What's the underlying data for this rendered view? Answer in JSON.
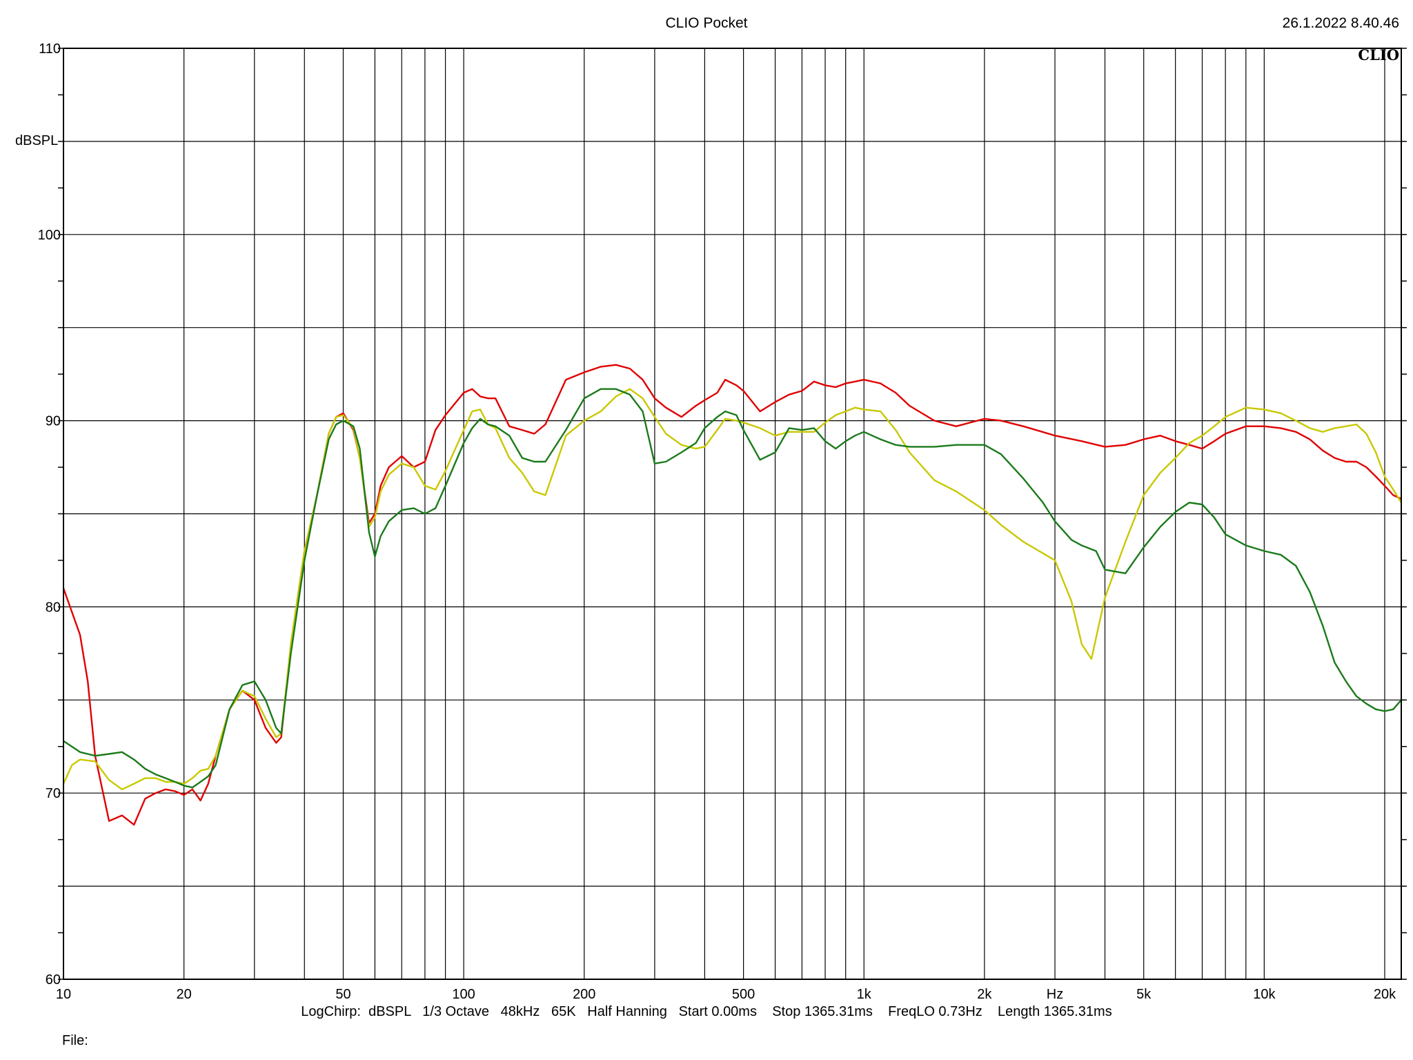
{
  "header": {
    "title": "CLIO Pocket",
    "timestamp": "26.1.2022 8.40.46",
    "logo": "CLIO"
  },
  "footer": {
    "settings": "LogChirp:  dBSPL   1/3 Octave   48kHz   65K   Half Hanning   Start 0.00ms    Stop 1365.31ms    FreqLO 0.73Hz    Length 1365.31ms",
    "file_label": "File:"
  },
  "chart_data": {
    "type": "line",
    "title": "CLIO Pocket",
    "xlabel": "Hz",
    "ylabel": "dBSPL",
    "xscale": "log",
    "xlim": [
      10,
      22000
    ],
    "ylim": [
      60,
      110
    ],
    "grid": true,
    "x_tick_labels": [
      {
        "value": 10,
        "label": "10"
      },
      {
        "value": 20,
        "label": "20"
      },
      {
        "value": 50,
        "label": "50"
      },
      {
        "value": 100,
        "label": "100"
      },
      {
        "value": 200,
        "label": "200"
      },
      {
        "value": 500,
        "label": "500"
      },
      {
        "value": 1000,
        "label": "1k"
      },
      {
        "value": 2000,
        "label": "2k"
      },
      {
        "value": 3000,
        "label": "Hz"
      },
      {
        "value": 5000,
        "label": "5k"
      },
      {
        "value": 10000,
        "label": "10k"
      },
      {
        "value": 20000,
        "label": "20k"
      }
    ],
    "y_tick_labels": [
      {
        "value": 110,
        "label": "110"
      },
      {
        "value": 100,
        "label": "100"
      },
      {
        "value": 90,
        "label": "90"
      },
      {
        "value": 80,
        "label": "80"
      },
      {
        "value": 70,
        "label": "70"
      },
      {
        "value": 60,
        "label": "60"
      }
    ],
    "series": [
      {
        "color": "#e00000",
        "x": [
          10,
          11,
          11.5,
          12,
          13,
          14,
          15,
          16,
          17,
          18,
          19,
          20,
          21,
          22,
          23,
          24,
          26,
          28,
          30,
          32,
          34,
          35,
          37,
          40,
          43,
          46,
          48,
          50,
          53,
          55,
          58,
          60,
          62,
          65,
          70,
          75,
          80,
          85,
          90,
          100,
          105,
          110,
          115,
          120,
          130,
          140,
          150,
          160,
          180,
          200,
          220,
          240,
          260,
          280,
          300,
          320,
          350,
          380,
          400,
          430,
          450,
          480,
          500,
          550,
          600,
          650,
          700,
          750,
          800,
          850,
          900,
          950,
          1000,
          1100,
          1200,
          1300,
          1500,
          1700,
          2000,
          2200,
          2500,
          3000,
          3500,
          4000,
          4500,
          5000,
          5500,
          6000,
          6500,
          7000,
          7500,
          8000,
          9000,
          10000,
          11000,
          12000,
          13000,
          14000,
          15000,
          16000,
          17000,
          18000,
          19000,
          20000,
          21000,
          22000
        ],
        "y": [
          81,
          78.5,
          76,
          72,
          68.5,
          68.8,
          68.3,
          69.7,
          70,
          70.2,
          70.1,
          69.9,
          70.2,
          69.6,
          70.5,
          72,
          74.5,
          75.5,
          75,
          73.5,
          72.7,
          73,
          78,
          83,
          86,
          89.3,
          90.2,
          90.4,
          89.5,
          88,
          84.5,
          85,
          86.5,
          87.5,
          88.1,
          87.5,
          87.8,
          89.5,
          90.3,
          91.5,
          91.7,
          91.3,
          91.2,
          91.2,
          89.7,
          89.5,
          89.3,
          89.8,
          92.2,
          92.6,
          92.9,
          93,
          92.8,
          92.2,
          91.2,
          90.7,
          90.2,
          90.8,
          91.1,
          91.5,
          92.2,
          91.9,
          91.6,
          90.5,
          91.0,
          91.4,
          91.6,
          92.1,
          91.9,
          91.8,
          92.0,
          92.1,
          92.2,
          92.0,
          91.5,
          90.8,
          90.0,
          89.7,
          90.1,
          90.0,
          89.7,
          89.2,
          88.9,
          88.6,
          88.7,
          89.0,
          89.2,
          88.9,
          88.7,
          88.5,
          88.9,
          89.3,
          89.7,
          89.7,
          89.6,
          89.4,
          89.0,
          88.4,
          88.0,
          87.8,
          87.8,
          87.5,
          87.0,
          86.5,
          86.0,
          85.8
        ]
      },
      {
        "color": "#c8c800",
        "x": [
          10,
          10.5,
          11,
          12,
          13,
          14,
          15,
          16,
          17,
          18,
          19,
          20,
          21,
          22,
          23,
          24,
          26,
          28,
          30,
          32,
          34,
          35,
          37,
          40,
          43,
          46,
          48,
          50,
          53,
          55,
          58,
          60,
          62,
          65,
          70,
          75,
          80,
          85,
          90,
          100,
          105,
          110,
          115,
          120,
          130,
          140,
          150,
          160,
          180,
          200,
          220,
          240,
          260,
          280,
          300,
          320,
          350,
          380,
          400,
          430,
          450,
          480,
          500,
          550,
          600,
          650,
          700,
          750,
          800,
          850,
          900,
          950,
          1000,
          1100,
          1200,
          1300,
          1500,
          1700,
          2000,
          2200,
          2500,
          3000,
          3300,
          3500,
          3700,
          4000,
          4500,
          5000,
          5500,
          6000,
          6500,
          7000,
          7500,
          8000,
          9000,
          10000,
          11000,
          12000,
          13000,
          14000,
          15000,
          16000,
          17000,
          18000,
          19000,
          20000,
          21000,
          22000
        ],
        "y": [
          70.5,
          71.5,
          71.8,
          71.7,
          70.7,
          70.2,
          70.5,
          70.8,
          70.8,
          70.6,
          70.6,
          70.5,
          70.8,
          71.2,
          71.3,
          72,
          74.5,
          75.5,
          75.2,
          74,
          73,
          73.2,
          78,
          83,
          86,
          89.3,
          90.2,
          90.3,
          89.6,
          88,
          84.3,
          84.8,
          86.2,
          87.1,
          87.7,
          87.5,
          86.5,
          86.3,
          87.3,
          89.5,
          90.5,
          90.6,
          89.8,
          89.6,
          88.0,
          87.2,
          86.2,
          86.0,
          89.2,
          90.0,
          90.5,
          91.3,
          91.7,
          91.2,
          90.2,
          89.3,
          88.7,
          88.5,
          88.6,
          89.5,
          90.1,
          90.0,
          89.9,
          89.6,
          89.2,
          89.4,
          89.4,
          89.4,
          89.9,
          90.3,
          90.5,
          90.7,
          90.6,
          90.5,
          89.5,
          88.3,
          86.8,
          86.2,
          85.2,
          84.4,
          83.5,
          82.5,
          80.3,
          78.0,
          77.2,
          80.5,
          83.5,
          86.0,
          87.2,
          88.0,
          88.8,
          89.2,
          89.7,
          90.2,
          90.7,
          90.6,
          90.4,
          90.0,
          89.6,
          89.4,
          89.6,
          89.7,
          89.8,
          89.3,
          88.3,
          87.0,
          86.3,
          85.6
        ]
      },
      {
        "color": "#1a7a1a",
        "x": [
          10,
          11,
          12,
          13,
          14,
          15,
          16,
          17,
          18,
          19,
          20,
          21,
          22,
          23,
          24,
          26,
          28,
          30,
          32,
          34,
          35,
          37,
          40,
          43,
          46,
          48,
          50,
          53,
          55,
          58,
          60,
          62,
          65,
          70,
          75,
          80,
          85,
          90,
          100,
          105,
          110,
          115,
          120,
          130,
          140,
          150,
          160,
          180,
          200,
          220,
          240,
          260,
          280,
          300,
          320,
          350,
          380,
          400,
          430,
          450,
          480,
          500,
          550,
          600,
          650,
          700,
          750,
          800,
          850,
          900,
          950,
          1000,
          1100,
          1200,
          1300,
          1500,
          1700,
          2000,
          2200,
          2500,
          2800,
          3000,
          3300,
          3500,
          3800,
          4000,
          4500,
          5000,
          5500,
          6000,
          6500,
          7000,
          7500,
          8000,
          9000,
          10000,
          11000,
          12000,
          13000,
          14000,
          15000,
          16000,
          17000,
          18000,
          19000,
          20000,
          21000,
          22000
        ],
        "y": [
          72.8,
          72.2,
          72.0,
          72.1,
          72.2,
          71.8,
          71.3,
          71.0,
          70.8,
          70.6,
          70.4,
          70.3,
          70.6,
          70.9,
          71.5,
          74.5,
          75.8,
          76.0,
          75,
          73.5,
          73.2,
          77.5,
          82.5,
          86,
          89.0,
          89.8,
          90.0,
          89.7,
          88.5,
          84,
          82.7,
          83.8,
          84.6,
          85.2,
          85.3,
          85.0,
          85.3,
          86.5,
          88.8,
          89.6,
          90.1,
          89.8,
          89.7,
          89.2,
          88.0,
          87.8,
          87.8,
          89.5,
          91.2,
          91.7,
          91.7,
          91.4,
          90.5,
          87.7,
          87.8,
          88.3,
          88.8,
          89.6,
          90.2,
          90.5,
          90.3,
          89.5,
          87.9,
          88.3,
          89.6,
          89.5,
          89.6,
          88.9,
          88.5,
          88.9,
          89.2,
          89.4,
          89.0,
          88.7,
          88.6,
          88.6,
          88.7,
          88.7,
          88.2,
          86.9,
          85.6,
          84.6,
          83.6,
          83.3,
          83.0,
          82.0,
          81.8,
          83.2,
          84.3,
          85.1,
          85.6,
          85.5,
          84.8,
          83.9,
          83.3,
          83.0,
          82.8,
          82.2,
          80.8,
          79.0,
          77.0,
          76.0,
          75.2,
          74.8,
          74.5,
          74.4,
          74.5,
          75.0
        ]
      }
    ]
  }
}
